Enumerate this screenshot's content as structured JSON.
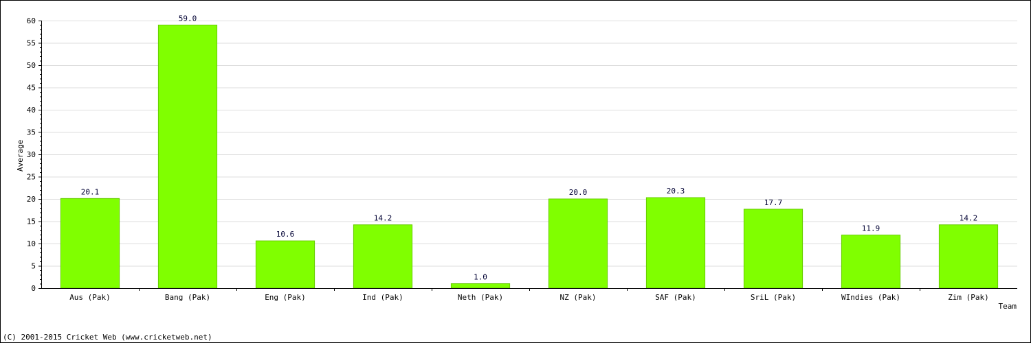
{
  "chart_data": {
    "type": "bar",
    "categories": [
      "Aus (Pak)",
      "Bang (Pak)",
      "Eng (Pak)",
      "Ind (Pak)",
      "Neth (Pak)",
      "NZ (Pak)",
      "SAF (Pak)",
      "SriL (Pak)",
      "WIndies (Pak)",
      "Zim (Pak)"
    ],
    "values": [
      20.1,
      59.0,
      10.6,
      14.2,
      1.0,
      20.0,
      20.3,
      17.7,
      11.9,
      14.2
    ],
    "value_labels": [
      "20.1",
      "59.0",
      "10.6",
      "14.2",
      "1.0",
      "20.0",
      "20.3",
      "17.7",
      "11.9",
      "14.2"
    ],
    "xlabel": "Team",
    "ylabel": "Average",
    "ylim": [
      0,
      60
    ],
    "yticks": [
      0,
      5,
      10,
      15,
      20,
      25,
      30,
      35,
      40,
      45,
      50,
      55,
      60
    ],
    "grid": true,
    "bar_color": "#80ff00",
    "bar_edge_color": "#66cc00",
    "grid_color": "#dddddd",
    "value_label_color": "#000033"
  },
  "footer": {
    "copyright": "(C) 2001-2015 Cricket Web (www.cricketweb.net)"
  }
}
